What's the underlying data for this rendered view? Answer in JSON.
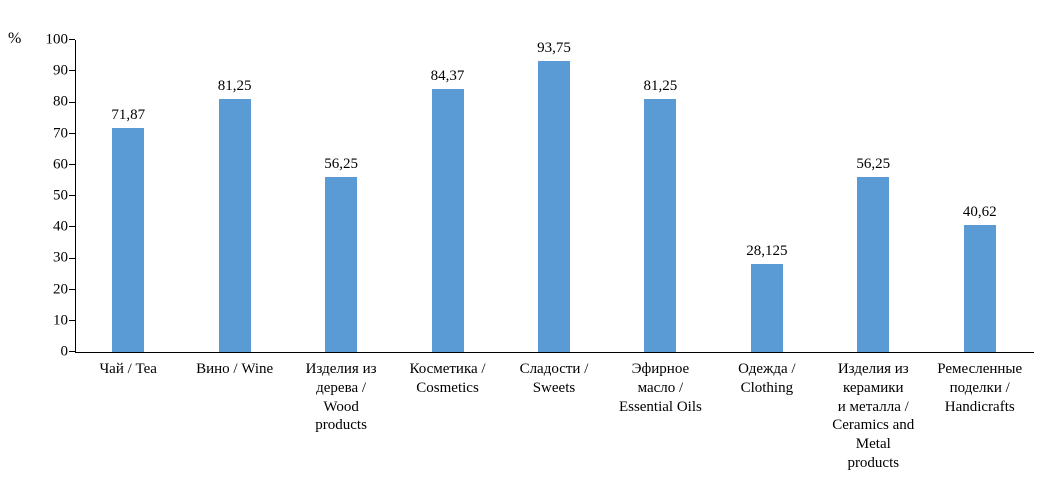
{
  "chart_data": {
    "type": "bar",
    "title": "",
    "xlabel": "",
    "ylabel": "%",
    "ylim": [
      0,
      100
    ],
    "yticks": [
      0,
      10,
      20,
      30,
      40,
      50,
      60,
      70,
      80,
      90,
      100
    ],
    "grid": false,
    "legend": "none",
    "bar_color": "#5b9bd5",
    "categories": [
      "Чай / Tea",
      "Вино / Wine",
      "Изделия из\nдерева /\nWood\nproducts",
      "Косметика /\nCosmetics",
      "Сладости /\nSweets",
      "Эфирное\nмасло /\nEssential Oils",
      "Одежда /\nClothing",
      "Изделия из\nкерамики\nи металла /\nCeramics and\nMetal\nproducts",
      "Ремесленные\nподелки /\nHandicrafts"
    ],
    "values": [
      71.87,
      81.25,
      56.25,
      84.37,
      93.75,
      81.25,
      28.125,
      56.25,
      40.62
    ],
    "value_labels": [
      "71,87",
      "81,25",
      "56,25",
      "84,37",
      "93,75",
      "81,25",
      "28,125",
      "56,25",
      "40,62"
    ]
  }
}
